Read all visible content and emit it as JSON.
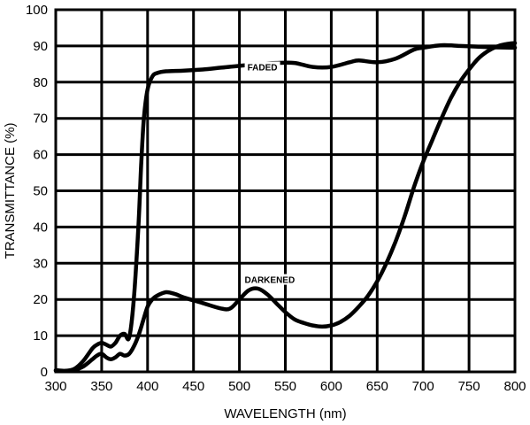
{
  "chart_data": {
    "type": "line",
    "xlabel": "WAVELENGTH (nm)",
    "ylabel": "TRANSMITTANCE (%)",
    "xlim": [
      300,
      800
    ],
    "ylim": [
      0,
      100
    ],
    "xticks": [
      300,
      350,
      400,
      450,
      500,
      550,
      600,
      650,
      700,
      750,
      800
    ],
    "yticks": [
      0,
      10,
      20,
      30,
      40,
      50,
      60,
      70,
      80,
      90,
      100
    ],
    "grid": true,
    "annotations": [
      {
        "text": "FADED",
        "x": 525,
        "y": 83.5
      },
      {
        "text": "DARKENED",
        "x": 533,
        "y": 24.8
      }
    ],
    "series": [
      {
        "label_key": "faded",
        "x": [
          300,
          310,
          320,
          330,
          340,
          345,
          350,
          355,
          360,
          365,
          370,
          375,
          380,
          385,
          390,
          393,
          396,
          400,
          405,
          410,
          420,
          440,
          460,
          480,
          500,
          520,
          540,
          560,
          580,
          600,
          620,
          630,
          650,
          670,
          690,
          700,
          720,
          740,
          760,
          780,
          800
        ],
        "y": [
          0.5,
          0.3,
          0.8,
          3,
          6.5,
          7.5,
          8,
          7.5,
          7,
          8,
          10,
          10.5,
          9.5,
          20,
          40,
          57,
          70,
          78,
          81.5,
          82.5,
          83,
          83.2,
          83.5,
          84,
          84.5,
          85,
          85.3,
          85.3,
          84.2,
          84.2,
          85.5,
          86,
          85.5,
          86.5,
          89,
          89.5,
          90.2,
          90,
          89.8,
          89.6,
          89.5
        ]
      },
      {
        "label_key": "darkened",
        "x": [
          300,
          310,
          320,
          330,
          340,
          345,
          350,
          355,
          360,
          365,
          370,
          375,
          380,
          385,
          390,
          395,
          400,
          405,
          410,
          420,
          430,
          440,
          460,
          480,
          490,
          500,
          510,
          520,
          530,
          540,
          550,
          560,
          570,
          580,
          590,
          600,
          610,
          620,
          630,
          640,
          650,
          660,
          670,
          680,
          690,
          700,
          710,
          720,
          730,
          740,
          750,
          760,
          770,
          780,
          790,
          800
        ],
        "y": [
          0.3,
          0.2,
          0.5,
          1.5,
          3.5,
          4.5,
          5,
          4,
          3.5,
          4,
          5,
          4.5,
          5,
          7,
          10,
          14,
          18,
          20,
          21,
          22,
          21.5,
          20.5,
          19,
          17.5,
          17.5,
          20,
          22.5,
          23,
          21.5,
          19,
          16.5,
          14.5,
          13.5,
          12.8,
          12.5,
          12.8,
          13.8,
          15.5,
          18,
          21,
          25,
          30,
          36,
          43,
          51,
          58,
          64,
          70,
          75.5,
          80,
          83.5,
          86.5,
          88.5,
          89.8,
          90.5,
          90.8
        ]
      }
    ]
  }
}
